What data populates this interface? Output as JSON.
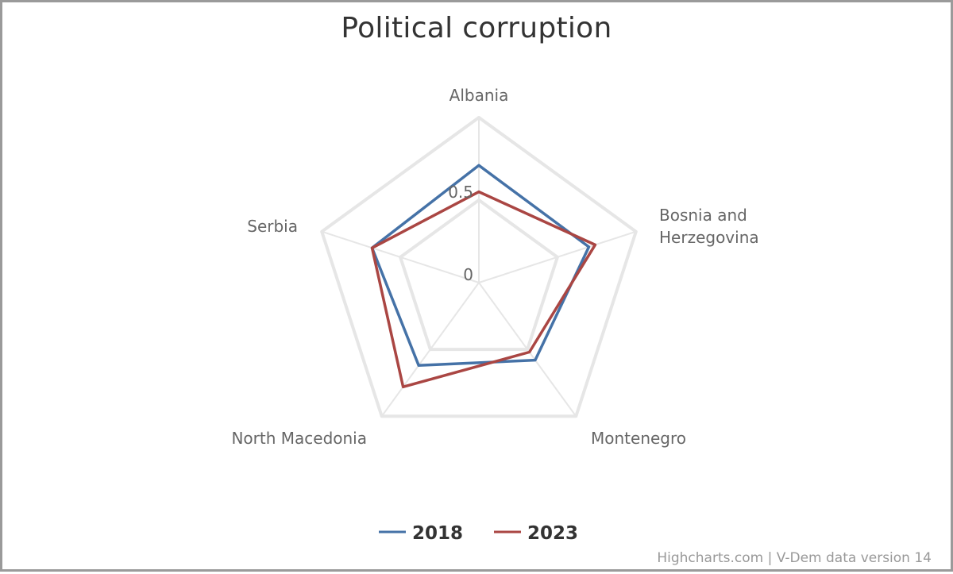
{
  "chart_data": {
    "type": "radar",
    "title": "Political corruption",
    "categories": [
      "Albania",
      "Bosnia and Herzegovina",
      "Montenegro",
      "North Macedonia",
      "Serbia"
    ],
    "series": [
      {
        "name": "2018",
        "color": "#4572A7",
        "values": [
          0.71,
          0.7,
          0.58,
          0.62,
          0.68
        ]
      },
      {
        "name": "2023",
        "color": "#AA4643",
        "values": [
          0.55,
          0.74,
          0.52,
          0.78,
          0.68
        ]
      }
    ],
    "yaxis": {
      "min": 0,
      "max": 1,
      "tick_labels": [
        "0",
        "0.5"
      ]
    },
    "grid": true,
    "legend_position": "bottom-center"
  },
  "credits": "Highcharts.com | V-Dem data version 14"
}
